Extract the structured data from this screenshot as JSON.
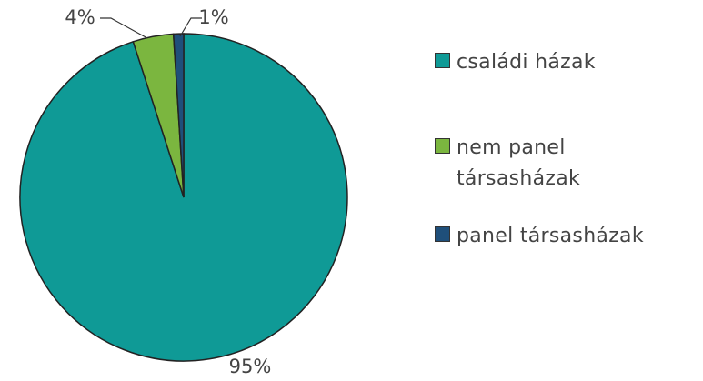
{
  "chart_data": {
    "type": "pie",
    "categories": [
      "családi házak",
      "nem panel társasházak",
      "panel társasházak"
    ],
    "values": [
      95,
      4,
      1
    ],
    "value_labels": [
      "95%",
      "4%",
      "1%"
    ],
    "colors": [
      "#0f9a96",
      "#7bb63f",
      "#1f4f7a"
    ],
    "legend": "right"
  }
}
